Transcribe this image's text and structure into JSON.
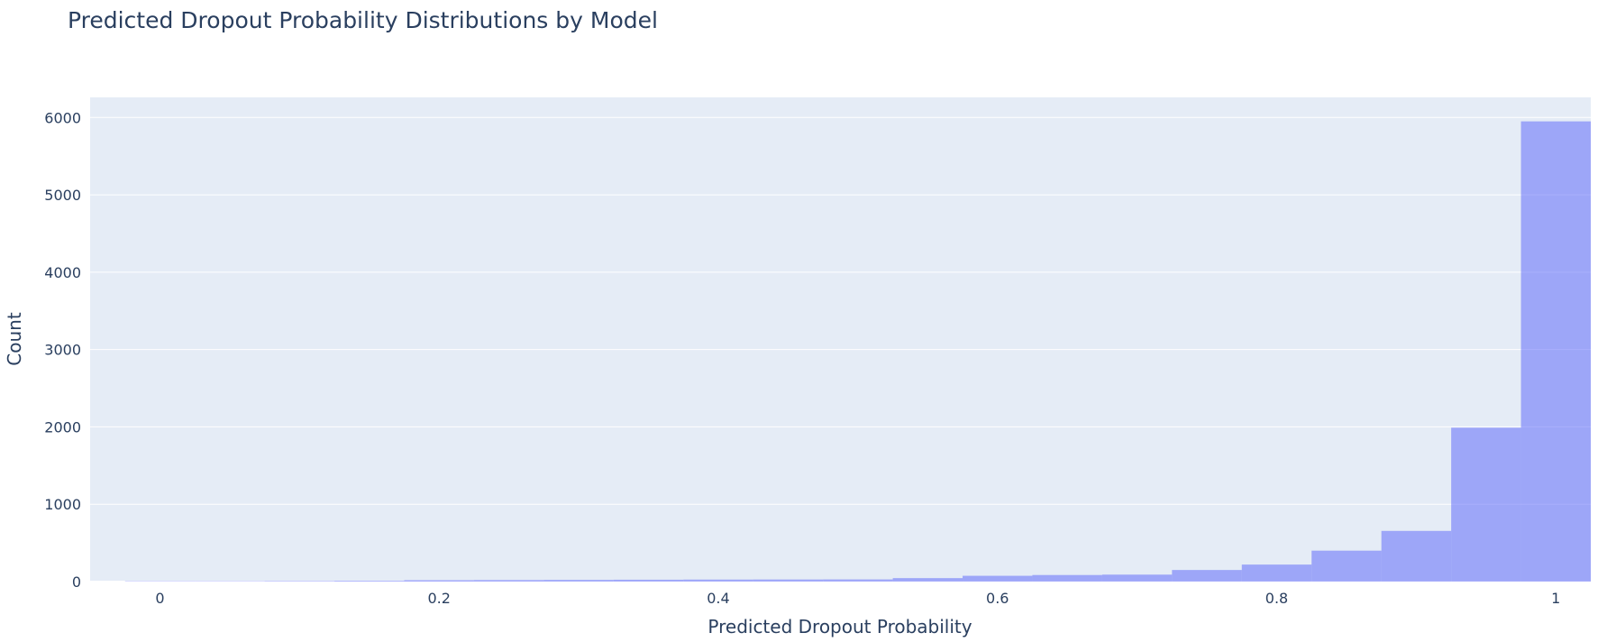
{
  "chart_data": {
    "type": "bar",
    "title": "Predicted Dropout Probability Distributions by Model",
    "xlabel": "Predicted Dropout Probability",
    "ylabel": "Count",
    "xlim": [
      -0.05,
      1.025
    ],
    "ylim": [
      0,
      6260
    ],
    "bin_width": 0.05,
    "xticks": [
      0,
      0.2,
      0.4,
      0.6,
      0.8,
      1
    ],
    "xtick_labels": [
      "0",
      "0.2",
      "0.4",
      "0.6",
      "0.8",
      "1"
    ],
    "yticks": [
      0,
      1000,
      2000,
      3000,
      4000,
      5000,
      6000
    ],
    "ytick_labels": [
      "0",
      "1000",
      "2000",
      "3000",
      "4000",
      "5000",
      "6000"
    ],
    "bar_color": "#636efa",
    "bar_opacity": 0.55,
    "plot_bg": "#e5ecf6",
    "grid": true,
    "series": [
      {
        "bins": [
          {
            "start": -0.025,
            "end": 0.025,
            "value": 5
          },
          {
            "start": 0.025,
            "end": 0.075,
            "value": 5
          },
          {
            "start": 0.075,
            "end": 0.125,
            "value": 7
          },
          {
            "start": 0.125,
            "end": 0.175,
            "value": 10
          },
          {
            "start": 0.175,
            "end": 0.225,
            "value": 18
          },
          {
            "start": 0.225,
            "end": 0.275,
            "value": 20
          },
          {
            "start": 0.275,
            "end": 0.325,
            "value": 22
          },
          {
            "start": 0.325,
            "end": 0.375,
            "value": 24
          },
          {
            "start": 0.375,
            "end": 0.425,
            "value": 26
          },
          {
            "start": 0.425,
            "end": 0.475,
            "value": 27
          },
          {
            "start": 0.475,
            "end": 0.525,
            "value": 28
          },
          {
            "start": 0.525,
            "end": 0.575,
            "value": 45
          },
          {
            "start": 0.575,
            "end": 0.625,
            "value": 75
          },
          {
            "start": 0.625,
            "end": 0.675,
            "value": 85
          },
          {
            "start": 0.675,
            "end": 0.725,
            "value": 90
          },
          {
            "start": 0.725,
            "end": 0.775,
            "value": 150
          },
          {
            "start": 0.775,
            "end": 0.825,
            "value": 220
          },
          {
            "start": 0.825,
            "end": 0.875,
            "value": 400
          },
          {
            "start": 0.875,
            "end": 0.925,
            "value": 655
          },
          {
            "start": 0.925,
            "end": 0.975,
            "value": 1990
          },
          {
            "start": 0.975,
            "end": 1.025,
            "value": 5950
          }
        ]
      }
    ]
  }
}
